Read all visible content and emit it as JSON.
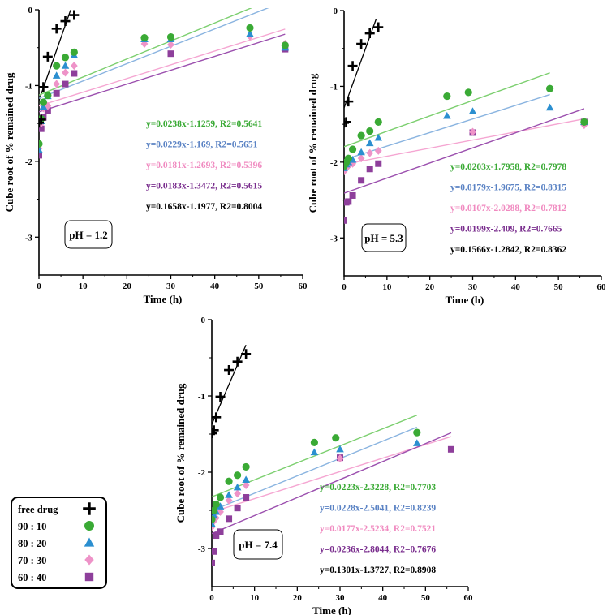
{
  "colors": {
    "free_drug": "#000000",
    "r90_10": "#3aaa35",
    "r80_20": "#2b8fd0",
    "r70_30": "#ee93c8",
    "r60_40": "#8e3f9b",
    "fit_90_10": "#7ccf6f",
    "fit_80_20": "#8ab4e0",
    "fit_70_30": "#f5a6d2",
    "fit_60_40": "#9b4fae",
    "eq_90_10": "#3aaa35",
    "eq_80_20": "#5b83c4",
    "eq_70_30": "#f08ac0",
    "eq_60_40": "#7a2e8e",
    "eq_free": "#000000"
  },
  "legend": {
    "title": "",
    "items": [
      {
        "key": "free",
        "label": "free drug",
        "marker": "plus"
      },
      {
        "key": "a",
        "label": "90 : 10",
        "marker": "circle"
      },
      {
        "key": "b",
        "label": "80 : 20",
        "marker": "triangle"
      },
      {
        "key": "c",
        "label": "70 : 30",
        "marker": "diamond"
      },
      {
        "key": "d",
        "label": "60 : 40",
        "marker": "square"
      }
    ]
  },
  "chart_data": [
    {
      "type": "scatter",
      "xlabel": "Time (h)",
      "ylabel": "Cube root of % remained drug",
      "xlim": [
        0,
        60
      ],
      "ylim": [
        -3.5,
        0
      ],
      "xticks": [
        0,
        10,
        20,
        30,
        40,
        50,
        60
      ],
      "yticks": [
        0,
        -1,
        -2,
        -3
      ],
      "annotation": "pH = 1.2",
      "series": [
        {
          "key": "free",
          "x": [
            0,
            0.5,
            1,
            2,
            4,
            6,
            8
          ],
          "y": [
            -1.49,
            -1.45,
            -1.02,
            -0.62,
            -0.25,
            -0.15,
            -0.07
          ],
          "fit": [
            -1.1977,
            0.1658,
            0,
            7.2
          ]
        },
        {
          "key": "a",
          "x": [
            0,
            0.5,
            1,
            2,
            4,
            6,
            8,
            24,
            30,
            48,
            56
          ],
          "y": [
            -1.77,
            -1.44,
            -1.22,
            -1.13,
            -0.74,
            -0.63,
            -0.56,
            -0.37,
            -0.36,
            -0.24,
            -0.47
          ],
          "fit": [
            -1.1259,
            0.0238,
            0,
            56
          ]
        },
        {
          "key": "b",
          "x": [
            0,
            0.5,
            1,
            2,
            4,
            6,
            8,
            24,
            30,
            48,
            56
          ],
          "y": [
            -1.85,
            -1.47,
            -1.28,
            -1.14,
            -0.87,
            -0.74,
            -0.6,
            -0.39,
            -0.39,
            -0.32,
            -0.5
          ],
          "fit": [
            -1.169,
            0.0229,
            0,
            56
          ]
        },
        {
          "key": "c",
          "x": [
            0,
            0.5,
            1,
            2,
            4,
            6,
            8,
            24,
            30,
            48,
            56
          ],
          "y": [
            -1.83,
            -1.5,
            -1.3,
            -1.27,
            -0.98,
            -0.83,
            -0.74,
            -0.45,
            -0.46,
            -0.35,
            -0.45
          ],
          "fit": [
            -1.2693,
            0.0181,
            0,
            56
          ]
        },
        {
          "key": "d",
          "x": [
            0,
            0.5,
            1,
            2,
            4,
            6,
            8,
            30,
            56
          ],
          "y": [
            -1.92,
            -1.57,
            -1.42,
            -1.33,
            -1.1,
            -0.98,
            -0.84,
            -0.58,
            -0.52
          ],
          "fit": [
            -1.3472,
            0.0183,
            0,
            56
          ]
        }
      ],
      "equations": [
        {
          "key": "a",
          "text": "y=0.0238x-1.1259, R2=0.5641"
        },
        {
          "key": "b",
          "text": "y=0.0229x-1.169, R2=0.5651"
        },
        {
          "key": "c",
          "text": "y=0.0181x-1.2693, R2=0.5396"
        },
        {
          "key": "d",
          "text": "y=0.0183x-1.3472, R2=0.5615"
        },
        {
          "key": "free",
          "text": "y=0.1658x-1.1977, R2=0.8004"
        }
      ]
    },
    {
      "type": "scatter",
      "xlabel": "Time (h)",
      "ylabel": "Cube root of % remained drug",
      "xlim": [
        0,
        60
      ],
      "ylim": [
        -3.5,
        0
      ],
      "xticks": [
        0,
        10,
        20,
        30,
        40,
        50,
        60
      ],
      "yticks": [
        0,
        -1,
        -2,
        -3
      ],
      "annotation": "pH = 5.3",
      "series": [
        {
          "key": "free",
          "x": [
            0,
            0.5,
            1,
            2,
            4,
            6,
            8
          ],
          "y": [
            -1.48,
            -1.47,
            -1.2,
            -0.73,
            -0.44,
            -0.3,
            -0.22
          ],
          "fit": [
            -1.2842,
            0.1566,
            0,
            7.5
          ]
        },
        {
          "key": "a",
          "x": [
            0,
            0.5,
            1,
            2,
            4,
            6,
            8,
            24,
            29,
            48,
            56
          ],
          "y": [
            -2.05,
            -2.0,
            -1.95,
            -1.83,
            -1.65,
            -1.59,
            -1.47,
            -1.13,
            -1.08,
            -1.03,
            -1.47
          ]
        },
        {
          "key": "b",
          "x": [
            0,
            0.5,
            1,
            2,
            4,
            6,
            8,
            24,
            30,
            48,
            56
          ],
          "y": [
            -2.08,
            -2.03,
            -2.0,
            -1.97,
            -1.87,
            -1.75,
            -1.68,
            -1.39,
            -1.33,
            -1.28,
            -1.47
          ]
        },
        {
          "key": "c",
          "x": [
            0,
            0.5,
            1,
            2,
            4,
            6,
            8,
            30,
            56
          ],
          "y": [
            -2.12,
            -2.08,
            -2.05,
            -2.02,
            -1.95,
            -1.88,
            -1.85,
            -1.6,
            -1.51
          ]
        },
        {
          "key": "d",
          "x": [
            0,
            0.5,
            1,
            2,
            4,
            6,
            8,
            30,
            56
          ],
          "y": [
            -2.77,
            -2.53,
            -2.52,
            -2.44,
            -2.24,
            -2.09,
            -2.02,
            -1.61,
            -1.47
          ]
        }
      ],
      "fits": [
        {
          "key": "a",
          "fit": [
            -1.7958,
            0.0203,
            0,
            48
          ]
        },
        {
          "key": "b",
          "fit": [
            -1.9675,
            0.0179,
            0,
            48
          ]
        },
        {
          "key": "c",
          "fit": [
            -2.0288,
            0.0107,
            0,
            56
          ]
        },
        {
          "key": "d",
          "fit": [
            -2.409,
            0.0199,
            0,
            56
          ]
        }
      ],
      "equations": [
        {
          "key": "a",
          "text": "y=0.0203x-1.7958, R2=0.7978"
        },
        {
          "key": "b",
          "text": "y=0.0179x-1.9675, R2=0.8315"
        },
        {
          "key": "c",
          "text": "y=0.0107x-2.0288, R2=0.7812"
        },
        {
          "key": "d",
          "text": "y=0.0199x-2.409, R2=0.7665"
        },
        {
          "key": "free",
          "text": "y=0.1566x-1.2842, R2=0.8362"
        }
      ]
    },
    {
      "type": "scatter",
      "xlabel": "Time (h)",
      "ylabel": "Cube root of % remained drug",
      "xlim": [
        0,
        60
      ],
      "ylim": [
        -3.5,
        0
      ],
      "xticks": [
        0,
        10,
        20,
        30,
        40,
        50,
        60
      ],
      "yticks": [
        0,
        -1,
        -2,
        -3
      ],
      "annotation": "pH = 7.4",
      "series": [
        {
          "key": "free",
          "x": [
            0,
            0.5,
            1,
            2,
            4,
            6,
            8
          ],
          "y": [
            -1.49,
            -1.45,
            -1.28,
            -1.01,
            -0.66,
            -0.55,
            -0.45
          ],
          "fit": [
            -1.3727,
            0.1301,
            0,
            8
          ]
        },
        {
          "key": "a",
          "x": [
            0,
            0.5,
            1,
            2,
            4,
            6,
            8,
            24,
            29,
            48
          ],
          "y": [
            -2.62,
            -2.5,
            -2.42,
            -2.33,
            -2.12,
            -2.04,
            -1.93,
            -1.61,
            -1.55,
            -1.48
          ]
        },
        {
          "key": "b",
          "x": [
            0,
            0.5,
            1,
            2,
            4,
            6,
            8,
            24,
            30,
            48
          ],
          "y": [
            -2.68,
            -2.57,
            -2.52,
            -2.45,
            -2.3,
            -2.2,
            -2.1,
            -1.74,
            -1.7,
            -1.62
          ]
        },
        {
          "key": "c",
          "x": [
            0,
            0.5,
            1,
            2,
            4,
            6,
            8,
            30
          ],
          "y": [
            -2.72,
            -2.64,
            -2.6,
            -2.52,
            -2.37,
            -2.28,
            -2.17,
            -1.82
          ]
        },
        {
          "key": "d",
          "x": [
            0,
            0.5,
            1,
            2,
            4,
            6,
            8,
            30,
            56
          ],
          "y": [
            -3.19,
            -3.04,
            -2.83,
            -2.78,
            -2.61,
            -2.47,
            -2.33,
            -1.81,
            -1.7
          ]
        }
      ],
      "fits": [
        {
          "key": "a",
          "fit": [
            -2.3228,
            0.0223,
            0,
            48
          ]
        },
        {
          "key": "b",
          "fit": [
            -2.5041,
            0.0228,
            0,
            48
          ]
        },
        {
          "key": "c",
          "fit": [
            -2.5234,
            0.0177,
            0,
            56
          ]
        },
        {
          "key": "d",
          "fit": [
            -2.8044,
            0.0236,
            0,
            56
          ]
        }
      ],
      "equations": [
        {
          "key": "a",
          "text": "y=0.0223x-2.3228, R2=0.7703"
        },
        {
          "key": "b",
          "text": "y=0.0228x-2.5041, R2=0.8239"
        },
        {
          "key": "c",
          "text": "y=0.0177x-2.5234, R2=0.7521"
        },
        {
          "key": "d",
          "text": "y=0.0236x-2.8044, R2=0.7676"
        },
        {
          "key": "free",
          "text": "y=0.1301x-1.3727, R2=0.8908"
        }
      ]
    }
  ]
}
